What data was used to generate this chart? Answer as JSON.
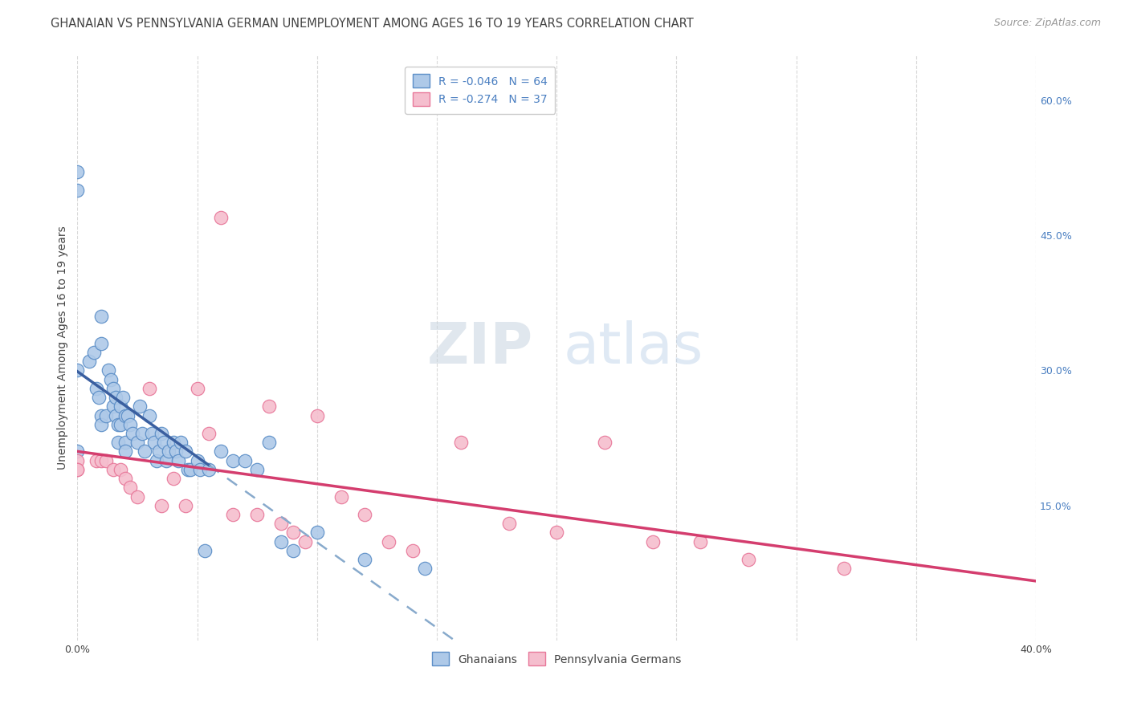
{
  "title": "GHANAIAN VS PENNSYLVANIA GERMAN UNEMPLOYMENT AMONG AGES 16 TO 19 YEARS CORRELATION CHART",
  "source": "Source: ZipAtlas.com",
  "ylabel": "Unemployment Among Ages 16 to 19 years",
  "xlim": [
    0.0,
    0.4
  ],
  "ylim": [
    0.0,
    0.65
  ],
  "x_ticks": [
    0.0,
    0.05,
    0.1,
    0.15,
    0.2,
    0.25,
    0.3,
    0.35,
    0.4
  ],
  "y_ticks_right": [
    0.15,
    0.3,
    0.45,
    0.6
  ],
  "y_tick_labels_right": [
    "15.0%",
    "30.0%",
    "45.0%",
    "60.0%"
  ],
  "ghanaian_color": "#aec9e8",
  "ghanaian_edge_color": "#5b8ec7",
  "penn_color": "#f5bece",
  "penn_edge_color": "#e8789a",
  "trend_blue_solid": "#3a5fa0",
  "trend_blue_dash": "#88aacc",
  "trend_pink_solid": "#d43d6e",
  "R_ghanaian": -0.046,
  "N_ghanaian": 64,
  "R_penn": -0.274,
  "N_penn": 37,
  "watermark_zip": "ZIP",
  "watermark_atlas": "atlas",
  "legend_labels": [
    "Ghanaians",
    "Pennsylvania Germans"
  ],
  "ghanaian_x": [
    0.0,
    0.0,
    0.0,
    0.0,
    0.005,
    0.007,
    0.008,
    0.009,
    0.01,
    0.01,
    0.01,
    0.01,
    0.012,
    0.013,
    0.014,
    0.015,
    0.015,
    0.016,
    0.016,
    0.017,
    0.017,
    0.018,
    0.018,
    0.019,
    0.02,
    0.02,
    0.02,
    0.021,
    0.022,
    0.023,
    0.025,
    0.026,
    0.027,
    0.028,
    0.03,
    0.031,
    0.032,
    0.033,
    0.034,
    0.035,
    0.036,
    0.037,
    0.038,
    0.04,
    0.041,
    0.042,
    0.043,
    0.045,
    0.046,
    0.047,
    0.05,
    0.051,
    0.053,
    0.055,
    0.06,
    0.065,
    0.07,
    0.075,
    0.08,
    0.085,
    0.09,
    0.1,
    0.12,
    0.145
  ],
  "ghanaian_y": [
    0.52,
    0.5,
    0.3,
    0.21,
    0.31,
    0.32,
    0.28,
    0.27,
    0.25,
    0.24,
    0.33,
    0.36,
    0.25,
    0.3,
    0.29,
    0.28,
    0.26,
    0.27,
    0.25,
    0.24,
    0.22,
    0.24,
    0.26,
    0.27,
    0.25,
    0.22,
    0.21,
    0.25,
    0.24,
    0.23,
    0.22,
    0.26,
    0.23,
    0.21,
    0.25,
    0.23,
    0.22,
    0.2,
    0.21,
    0.23,
    0.22,
    0.2,
    0.21,
    0.22,
    0.21,
    0.2,
    0.22,
    0.21,
    0.19,
    0.19,
    0.2,
    0.19,
    0.1,
    0.19,
    0.21,
    0.2,
    0.2,
    0.19,
    0.22,
    0.11,
    0.1,
    0.12,
    0.09,
    0.08
  ],
  "penn_x": [
    0.0,
    0.0,
    0.0,
    0.008,
    0.01,
    0.012,
    0.015,
    0.018,
    0.02,
    0.022,
    0.025,
    0.03,
    0.035,
    0.04,
    0.045,
    0.05,
    0.055,
    0.06,
    0.065,
    0.075,
    0.08,
    0.085,
    0.09,
    0.095,
    0.1,
    0.11,
    0.12,
    0.13,
    0.14,
    0.16,
    0.18,
    0.2,
    0.22,
    0.24,
    0.26,
    0.28,
    0.32
  ],
  "penn_y": [
    0.2,
    0.19,
    0.19,
    0.2,
    0.2,
    0.2,
    0.19,
    0.19,
    0.18,
    0.17,
    0.16,
    0.28,
    0.15,
    0.18,
    0.15,
    0.28,
    0.23,
    0.47,
    0.14,
    0.14,
    0.26,
    0.13,
    0.12,
    0.11,
    0.25,
    0.16,
    0.14,
    0.11,
    0.1,
    0.22,
    0.13,
    0.12,
    0.22,
    0.11,
    0.11,
    0.09,
    0.08
  ],
  "title_fontsize": 10.5,
  "source_fontsize": 9,
  "axis_label_fontsize": 10,
  "tick_fontsize": 9,
  "legend_fontsize": 10,
  "watermark_fontsize_zip": 52,
  "watermark_fontsize_atlas": 52,
  "background_color": "#ffffff",
  "grid_color": "#d0d0d0",
  "right_tick_color": "#4a7fc1",
  "text_color": "#444444"
}
